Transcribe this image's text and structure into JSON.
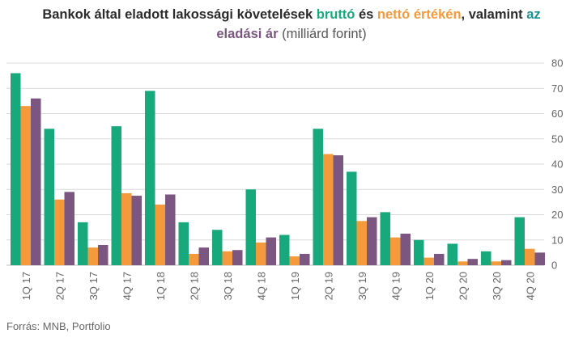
{
  "title": {
    "part1": "Bankok által eladott lakossági követelések ",
    "gross": "bruttó",
    "and": " és ",
    "net": "nettó értékén",
    "part2": ", valamint ",
    "az": "az",
    "sale_price": "eladási ár",
    "unit": " (milliárd forint)"
  },
  "source": "Forrás: MNB, Portfolio",
  "colors": {
    "gross": "#17a97c",
    "net": "#f59a3c",
    "sale": "#7b5680",
    "grid": "#d9d9d9",
    "axis_text": "#666666"
  },
  "chart_data": {
    "type": "bar",
    "categories": [
      "1Q 17",
      "2Q 17",
      "3Q 17",
      "4Q 17",
      "1Q 18",
      "2Q 18",
      "3Q 18",
      "4Q 18",
      "1Q 19",
      "2Q 19",
      "3Q 19",
      "4Q 19",
      "1Q 20",
      "2Q 20",
      "3Q 20",
      "4Q 20"
    ],
    "series": [
      {
        "key": "gross",
        "values": [
          76,
          54,
          17,
          55,
          69,
          17,
          14,
          30,
          12,
          54,
          37,
          21,
          10,
          8.5,
          5.5,
          19
        ]
      },
      {
        "key": "net",
        "values": [
          63,
          26,
          7,
          28.5,
          24,
          4.5,
          5.5,
          9,
          3.5,
          44,
          17.5,
          11,
          3,
          1.5,
          1.5,
          6.5
        ]
      },
      {
        "key": "sale",
        "values": [
          66,
          29,
          8,
          27.5,
          28,
          7,
          6,
          11,
          4.5,
          43.5,
          19,
          12.5,
          4.5,
          2.5,
          2,
          5
        ]
      }
    ],
    "ylim": [
      0,
      80
    ],
    "yticks": [
      0,
      10,
      20,
      30,
      40,
      50,
      60,
      70,
      80
    ],
    "y_axis_side": "right",
    "grid": true,
    "legend": "in title"
  }
}
